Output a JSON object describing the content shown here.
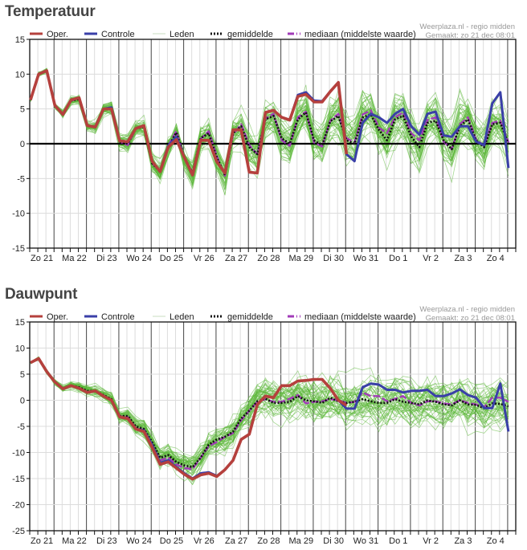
{
  "colors": {
    "oper": "#b5403d",
    "controle": "#3a3fa8",
    "leden": "#5cb83a",
    "gemiddelde": "#111111",
    "mediaan": "#a23bb8",
    "grid_minor": "#dcdcdc",
    "grid_major": "#555555"
  },
  "legend": {
    "oper": "Oper.",
    "controle": "Controle",
    "leden": "Leden",
    "gemiddelde": "gemiddelde",
    "mediaan": "mediaan (middelste waarde)"
  },
  "credit": {
    "line1": "Weerplaza.nl - regio midden",
    "line2": "Gemaakt: zo 21 dec 08:01"
  },
  "chart_data": [
    {
      "type": "line",
      "title": "Temperatuur",
      "xlabel": "",
      "ylabel": "",
      "ylim": [
        -15,
        15
      ],
      "yticks": [
        15,
        10,
        5,
        0,
        -5,
        -10,
        -15
      ],
      "zero_line": true,
      "grid": true,
      "legend_position": "top",
      "categories": [
        "Zo 21",
        "Ma 22",
        "Di 23",
        "Wo 24",
        "Do 25",
        "Vr 26",
        "Za 27",
        "Zo 28",
        "Ma 29",
        "Di 30",
        "Wo 31",
        "Do 1",
        "Vr 2",
        "Za 3",
        "Zo 4"
      ],
      "steps_per_day": 4,
      "series": [
        {
          "name": "Oper.",
          "key": "oper",
          "values": [
            6.3,
            10,
            10.5,
            5.5,
            4.2,
            6.3,
            6.6,
            2.6,
            2.4,
            5,
            5,
            0.4,
            0.3,
            2.2,
            2.6,
            -2.5,
            -4,
            -0.5,
            0.6,
            -2,
            -4.5,
            0.5,
            0.5,
            -2.6,
            -4.2,
            2,
            2,
            -4.1,
            -4.2,
            4.5,
            4.8,
            3.8,
            3.4,
            6.8,
            7.1,
            6,
            6,
            7.5,
            8.8,
            -1.5
          ]
        },
        {
          "name": "Controle",
          "key": "controle",
          "values": [
            6.3,
            10,
            10.5,
            5.5,
            4.2,
            6.3,
            6.6,
            2.6,
            2.4,
            5,
            5.2,
            0.4,
            0.3,
            2.2,
            2.6,
            -2.5,
            -4,
            -0.3,
            1,
            -2,
            -4.5,
            0.5,
            0.5,
            -2.6,
            -4.2,
            2,
            2,
            -4.1,
            -4.2,
            4.5,
            4.8,
            3.8,
            3.4,
            7.0,
            7.4,
            6.2,
            6.1,
            7.5,
            8.8,
            -1.5,
            -2.5,
            3,
            4.3,
            3.8,
            3,
            4.3,
            5,
            2.5,
            1.3,
            4.3,
            4.6,
            1.2,
            1,
            2.5,
            2.5,
            0.3,
            -0.2,
            5.8,
            7.4,
            -3.5
          ]
        },
        {
          "name": "gemiddelde",
          "key": "gemiddelde",
          "values": [
            6.3,
            10,
            10.5,
            5.5,
            4.2,
            6.2,
            6.4,
            2.6,
            2.4,
            5,
            5,
            0.3,
            0,
            2.2,
            2.4,
            -2.8,
            -4,
            -0.5,
            1.6,
            -2,
            -4.2,
            0.8,
            1.5,
            -2,
            -4.5,
            1.5,
            2.5,
            -0.5,
            -1.5,
            3.5,
            4,
            0.8,
            0,
            3.5,
            4.5,
            0.5,
            -0.2,
            3.2,
            4,
            0.5,
            0,
            3.8,
            4.2,
            2,
            0.5,
            3.5,
            4,
            1,
            -0.5,
            3,
            3.3,
            0.5,
            -0.8,
            2.5,
            3.5,
            0.5,
            -0.5,
            2.8,
            3,
            0
          ]
        },
        {
          "name": "mediaan (middelste waarde)",
          "key": "mediaan",
          "values": [
            6.3,
            10,
            10.5,
            5.5,
            4.2,
            6.2,
            6.5,
            2.6,
            2.4,
            5,
            5,
            0.3,
            -0.2,
            2.2,
            2.5,
            -2.8,
            -4,
            -0.3,
            1.8,
            -2,
            -4.3,
            0.7,
            1.8,
            -1.8,
            -4.6,
            1.3,
            2.8,
            -0.2,
            -1.5,
            3.6,
            4.3,
            0.5,
            -0.3,
            3.8,
            4.6,
            0.2,
            -0.4,
            3.3,
            4.3,
            0.8,
            0.2,
            4.2,
            4.8,
            2.3,
            1.5,
            3.8,
            4.5,
            1.5,
            0.5,
            3.4,
            3.8,
            0.3,
            -0.8,
            2.8,
            3.8,
            0.6,
            -0.3,
            3,
            3.3,
            0.2
          ]
        }
      ],
      "members_count": 50
    },
    {
      "type": "line",
      "title": "Dauwpunt",
      "xlabel": "",
      "ylabel": "",
      "ylim": [
        -25,
        15
      ],
      "yticks": [
        15,
        10,
        5,
        0,
        -5,
        -10,
        -15,
        -20,
        -25
      ],
      "zero_line": false,
      "grid": true,
      "legend_position": "top",
      "categories": [
        "Zo 21",
        "Ma 22",
        "Di 23",
        "Wo 24",
        "Do 25",
        "Vr 26",
        "Za 27",
        "Zo 28",
        "Ma 29",
        "Di 30",
        "Wo 31",
        "Do 1",
        "Vr 2",
        "Za 3",
        "Zo 4"
      ],
      "steps_per_day": 4,
      "series": [
        {
          "name": "Oper.",
          "key": "oper",
          "values": [
            7.2,
            8,
            5.5,
            3.5,
            2.2,
            2.8,
            2.3,
            1.5,
            1.8,
            0.8,
            0,
            -3.2,
            -3.5,
            -5.5,
            -6,
            -9,
            -12.3,
            -11.8,
            -13,
            -14.2,
            -15.1,
            -14.3,
            -14,
            -14.6,
            -13.3,
            -11.5,
            -7.5,
            -6.5,
            -0.8,
            0.8,
            0.5,
            2.8,
            2.8,
            3.7,
            3.8,
            4,
            4,
            2.3,
            0,
            -1
          ]
        },
        {
          "name": "Controle",
          "key": "controle",
          "values": [
            7.2,
            8,
            5.5,
            3.5,
            2.2,
            2.8,
            2.3,
            1.5,
            1.8,
            0.8,
            0,
            -3.2,
            -3.5,
            -5.5,
            -5.8,
            -8.5,
            -12,
            -11.5,
            -12.8,
            -14,
            -15,
            -14,
            -13.8,
            -14.5,
            -13.3,
            -11.5,
            -7.5,
            -6.5,
            -0.8,
            0.8,
            0.5,
            2.8,
            2.8,
            3.7,
            3.8,
            4,
            4,
            2.3,
            0,
            -1.6,
            -1.6,
            2.5,
            3.2,
            3,
            2,
            2,
            1.5,
            1.8,
            1.8,
            2,
            0.8,
            0.8,
            1.3,
            2.1,
            1,
            0.5,
            -1.5,
            -1.5,
            3.2,
            -6
          ]
        },
        {
          "name": "gemiddelde",
          "key": "gemiddelde",
          "values": [
            7.2,
            8,
            5.5,
            3.5,
            2.2,
            2.8,
            2.5,
            1.8,
            1.8,
            1,
            0.2,
            -3,
            -3,
            -5,
            -5.5,
            -8,
            -11,
            -10.5,
            -11.8,
            -12.5,
            -12.8,
            -11,
            -8.5,
            -7.5,
            -7,
            -6,
            -3.5,
            -2,
            -0.2,
            0.3,
            -0.5,
            -0.5,
            -0.3,
            0.8,
            0,
            -0.2,
            -0.5,
            0.5,
            -0.2,
            -0.5,
            -0.3,
            0.2,
            -0.2,
            -0.5,
            -0.5,
            0.2,
            -0.3,
            -0.5,
            -0.8,
            0,
            -0.3,
            -0.8,
            -1,
            0,
            -0.8,
            -0.9,
            -1.5,
            -0.6,
            -0.7,
            -1.2
          ]
        },
        {
          "name": "mediaan (middelste waarde)",
          "key": "mediaan",
          "values": [
            7.2,
            8,
            5.5,
            3.5,
            2.2,
            2.8,
            2.4,
            1.6,
            1.8,
            0.9,
            0.1,
            -3.1,
            -3.2,
            -5.3,
            -5.7,
            -8.5,
            -11.5,
            -11,
            -12.3,
            -13,
            -13.2,
            -11,
            -8.8,
            -8,
            -7,
            -6.3,
            -3.8,
            -2,
            -0.3,
            0.2,
            -0.3,
            -0.3,
            0.3,
            1,
            -0.6,
            -0.3,
            -0.2,
            0.2,
            0,
            -0.5,
            -0.3,
            1.5,
            0.8,
            0.8,
            -0.2,
            0.3,
            0.8,
            -0.5,
            -1,
            -0.2,
            -0.2,
            -0.6,
            -0.8,
            0,
            -0.5,
            -0.8,
            -1.3,
            0.5,
            0.5,
            -0.3
          ]
        }
      ],
      "members_count": 50
    }
  ]
}
